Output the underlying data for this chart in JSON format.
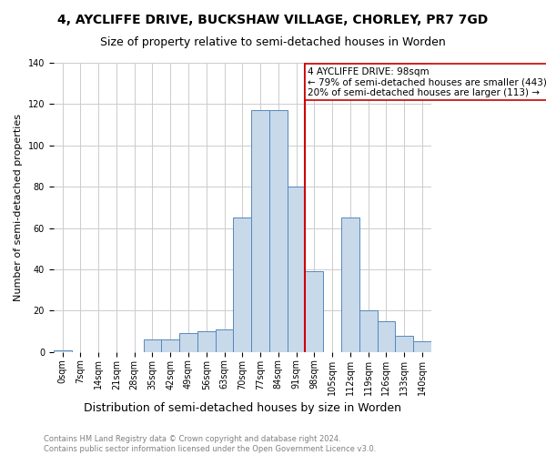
{
  "title": "4, AYCLIFFE DRIVE, BUCKSHAW VILLAGE, CHORLEY, PR7 7GD",
  "subtitle": "Size of property relative to semi-detached houses in Worden",
  "xlabel": "Distribution of semi-detached houses by size in Worden",
  "ylabel": "Number of semi-detached properties",
  "footnote": "Contains HM Land Registry data © Crown copyright and database right 2024.\nContains public sector information licensed under the Open Government Licence v3.0.",
  "bin_labels": [
    "0sqm",
    "7sqm",
    "14sqm",
    "21sqm",
    "28sqm",
    "35sqm",
    "42sqm",
    "49sqm",
    "56sqm",
    "63sqm",
    "70sqm",
    "77sqm",
    "84sqm",
    "91sqm",
    "98sqm",
    "105sqm",
    "112sqm",
    "119sqm",
    "126sqm",
    "133sqm",
    "140sqm"
  ],
  "bar_values": [
    1,
    0,
    0,
    0,
    0,
    6,
    6,
    9,
    10,
    11,
    65,
    117,
    117,
    80,
    39,
    0,
    65,
    20,
    15,
    8,
    5
  ],
  "bar_color": "#c8d9ea",
  "bar_edge_color": "#5588bb",
  "highlight_bin_index": 14,
  "highlight_label": "4 AYCLIFFE DRIVE: 98sqm",
  "highlight_line_color": "#cc0000",
  "annotation_line1": "← 79% of semi-detached houses are smaller (443)",
  "annotation_line2": "20% of semi-detached houses are larger (113) →",
  "ylim": [
    0,
    140
  ],
  "yticks": [
    0,
    20,
    40,
    60,
    80,
    100,
    120,
    140
  ],
  "background_color": "#ffffff",
  "grid_color": "#cccccc",
  "title_fontsize": 10,
  "subtitle_fontsize": 9,
  "xlabel_fontsize": 9,
  "ylabel_fontsize": 8,
  "tick_fontsize": 7,
  "annotation_fontsize": 7.5,
  "footnote_fontsize": 6,
  "annotation_box_color": "#ffffff",
  "annotation_box_edge": "#cc0000"
}
